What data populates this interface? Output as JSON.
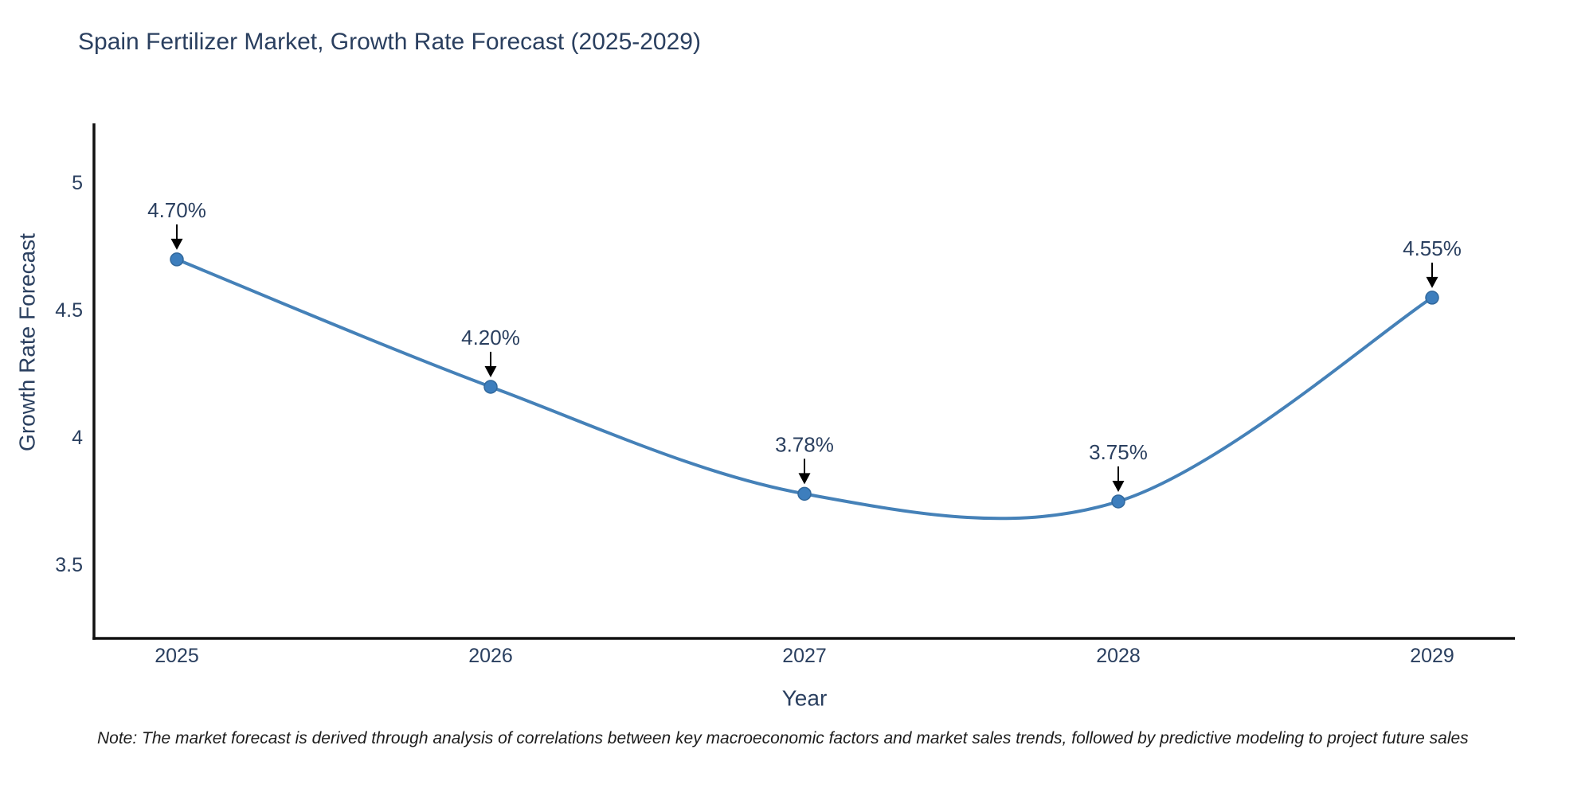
{
  "title": "Spain Fertilizer Market, Growth Rate Forecast (2025-2029)",
  "note": "Note: The market forecast is derived through analysis of correlations between key macroeconomic factors and market sales trends, followed by predictive modeling to project future sales",
  "chart_data": {
    "type": "line",
    "line_shape": "spline",
    "title": "Spain Fertilizer Market, Growth Rate Forecast (2025-2029)",
    "xlabel": "Year",
    "ylabel": "Growth Rate Forecast",
    "categories": [
      "2025",
      "2026",
      "2027",
      "2028",
      "2029"
    ],
    "values": [
      4.7,
      4.2,
      3.78,
      3.75,
      4.55
    ],
    "point_labels": [
      "4.70%",
      "4.20%",
      "3.78%",
      "3.75%",
      "4.55%"
    ],
    "annotation_style": "text-above-with-down-arrow",
    "ytick_values": [
      5,
      4.5,
      4,
      3.5
    ],
    "ytick_labels": [
      "5",
      "4.5",
      "4",
      "3.5"
    ],
    "ylim": [
      3.2125,
      5.234
    ],
    "grid": false,
    "legend_position": "none",
    "marker_size": 8,
    "colors": {
      "line": "#4581b8",
      "marker": "#3d7ebd",
      "marker_edge": "#31689c",
      "text": "#2a3f5f",
      "axis": "#111111",
      "arrow": "#000000"
    }
  }
}
